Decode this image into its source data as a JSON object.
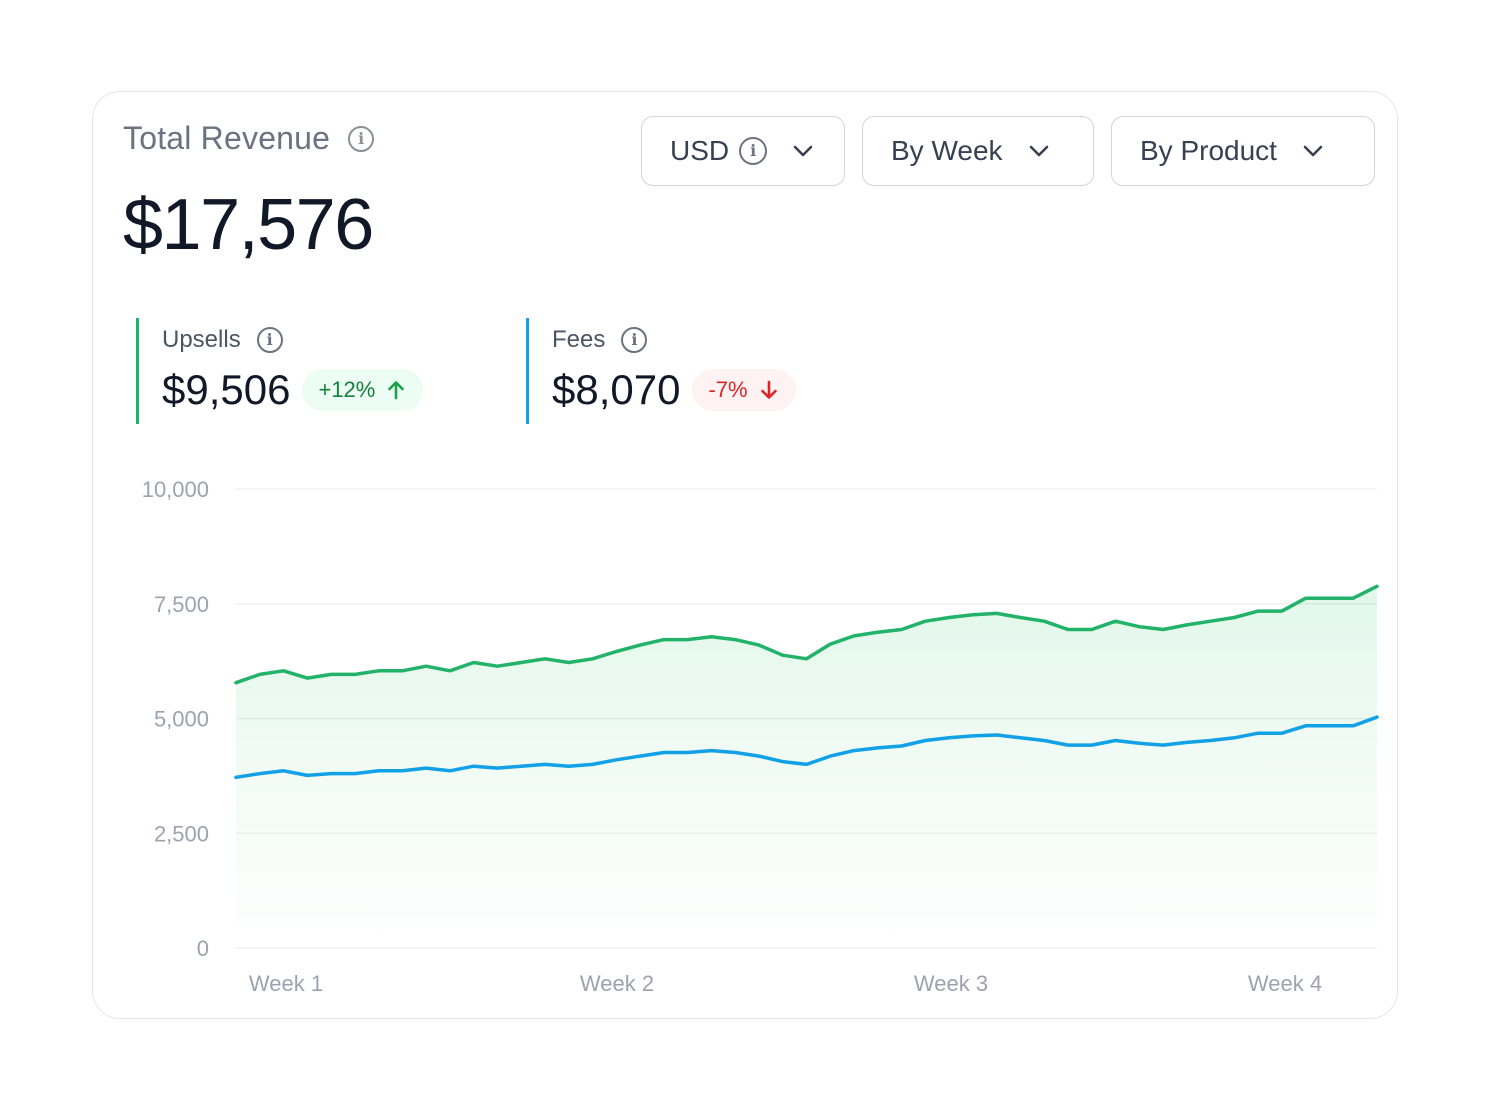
{
  "header": {
    "title": "Total Revenue",
    "total": "$17,576"
  },
  "controls": {
    "currency": "USD",
    "period": "By Week",
    "grouping": "By Product"
  },
  "metrics": {
    "upsells": {
      "label": "Upsells",
      "value": "$9,506",
      "change": "+12%",
      "color": "#22b26a"
    },
    "fees": {
      "label": "Fees",
      "value": "$8,070",
      "change": "-7%",
      "color": "#12a0e6"
    }
  },
  "chart_data": {
    "type": "area",
    "yticks": [
      "10,000",
      "7,500",
      "5,000",
      "2,500",
      "0"
    ],
    "ylim": [
      0,
      10000
    ],
    "xticks": [
      "Week 1",
      "Week 2",
      "Week 3",
      "Week 4"
    ],
    "grid": true,
    "series": [
      {
        "name": "Upsells",
        "color": "#22b26a",
        "values": [
          5780,
          5960,
          6040,
          5880,
          5960,
          5960,
          6040,
          6040,
          6140,
          6040,
          6220,
          6140,
          6220,
          6300,
          6220,
          6300,
          6460,
          6600,
          6720,
          6720,
          6780,
          6720,
          6600,
          6380,
          6300,
          6620,
          6800,
          6880,
          6940,
          7120,
          7200,
          7260,
          7290,
          7200,
          7120,
          6940,
          6940,
          7120,
          7000,
          6940,
          7040,
          7120,
          7200,
          7340,
          7340,
          7620,
          7620,
          7620,
          7880
        ]
      },
      {
        "name": "Fees",
        "color": "#12a0e6",
        "values": [
          3720,
          3800,
          3860,
          3760,
          3800,
          3800,
          3860,
          3860,
          3920,
          3860,
          3960,
          3920,
          3960,
          4000,
          3960,
          4000,
          4100,
          4180,
          4260,
          4260,
          4300,
          4260,
          4180,
          4060,
          4000,
          4180,
          4300,
          4360,
          4400,
          4520,
          4580,
          4620,
          4640,
          4580,
          4520,
          4420,
          4420,
          4520,
          4460,
          4420,
          4480,
          4520,
          4580,
          4680,
          4680,
          4840,
          4840,
          4840,
          5030
        ]
      }
    ]
  }
}
